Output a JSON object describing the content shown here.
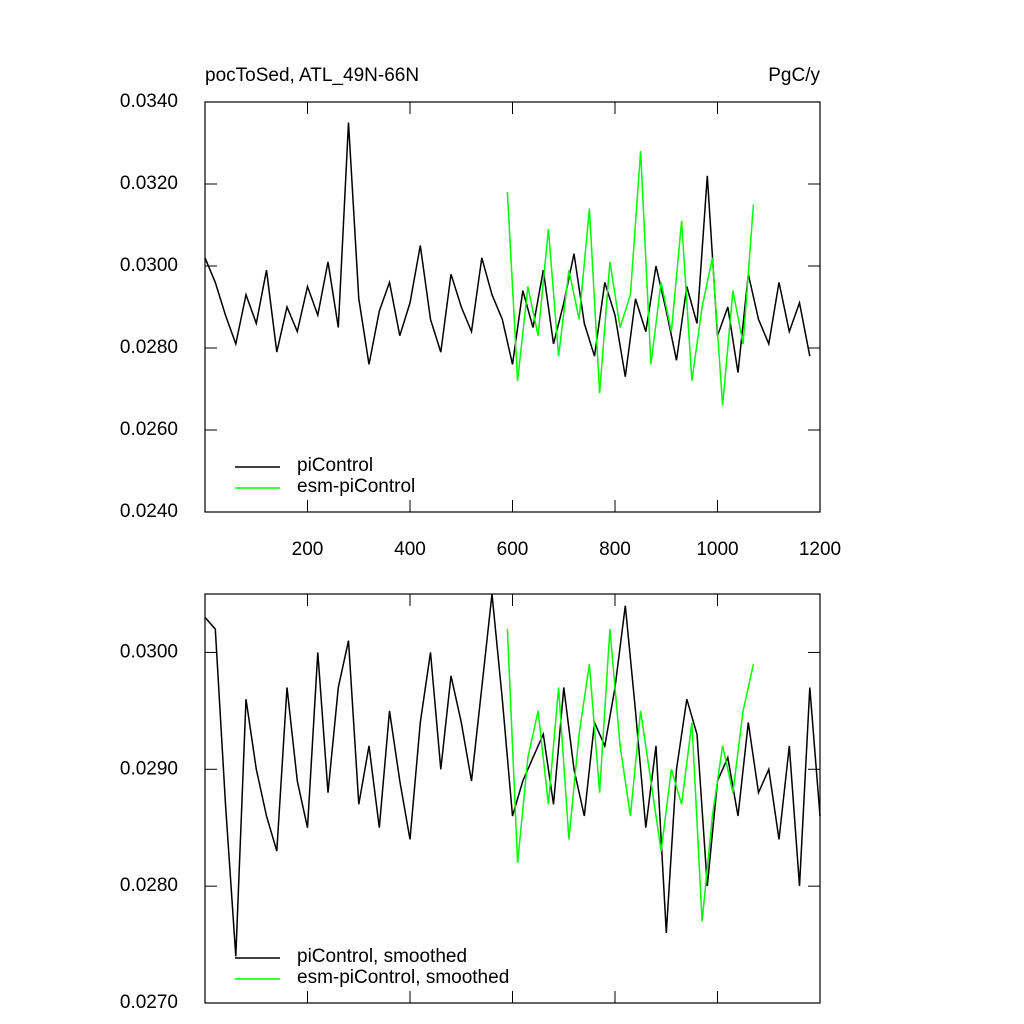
{
  "chart_data": [
    {
      "type": "line",
      "title": "pocToSed, ATL_49N-66N",
      "units": "PgC/y",
      "xlim": [
        0,
        1200
      ],
      "xticks": [
        200,
        400,
        600,
        800,
        1000,
        1200
      ],
      "show_xtick_labels": true,
      "ylim": [
        0.024,
        0.034
      ],
      "yticks": [
        {
          "value": 0.024,
          "label": "0.0240"
        },
        {
          "value": 0.026,
          "label": "0.0260"
        },
        {
          "value": 0.028,
          "label": "0.0280"
        },
        {
          "value": 0.03,
          "label": "0.0300"
        },
        {
          "value": 0.032,
          "label": "0.0320"
        },
        {
          "value": 0.034,
          "label": "0.0340"
        }
      ],
      "series": [
        {
          "name": "piControl",
          "color": "#000000",
          "x": [
            0,
            20,
            40,
            60,
            80,
            100,
            120,
            140,
            160,
            180,
            200,
            220,
            240,
            260,
            280,
            300,
            320,
            340,
            360,
            380,
            400,
            420,
            440,
            460,
            480,
            500,
            520,
            540,
            560,
            580,
            600,
            620,
            640,
            660,
            680,
            700,
            720,
            740,
            760,
            780,
            800,
            820,
            840,
            860,
            880,
            900,
            920,
            940,
            960,
            980,
            1000,
            1020,
            1040,
            1060,
            1080,
            1100,
            1120,
            1140,
            1160,
            1180
          ],
          "values": [
            0.0302,
            0.0296,
            0.0288,
            0.0281,
            0.0293,
            0.0286,
            0.0299,
            0.0279,
            0.029,
            0.0284,
            0.0295,
            0.0288,
            0.0301,
            0.0285,
            0.0335,
            0.0292,
            0.0276,
            0.0289,
            0.0296,
            0.0283,
            0.0291,
            0.0305,
            0.0287,
            0.0279,
            0.0298,
            0.029,
            0.0284,
            0.0302,
            0.0293,
            0.0287,
            0.0276,
            0.0294,
            0.0285,
            0.0299,
            0.0281,
            0.0291,
            0.0303,
            0.0286,
            0.0278,
            0.0296,
            0.0288,
            0.0273,
            0.0292,
            0.0284,
            0.03,
            0.0289,
            0.0277,
            0.0295,
            0.0286,
            0.0322,
            0.0283,
            0.029,
            0.0274,
            0.0298,
            0.0287,
            0.0281,
            0.0296,
            0.0284,
            0.0291,
            0.0278
          ]
        },
        {
          "name": "esm-piControl",
          "color": "#00ff00",
          "x": [
            590,
            610,
            630,
            650,
            670,
            690,
            710,
            730,
            750,
            770,
            790,
            810,
            830,
            850,
            870,
            890,
            910,
            930,
            950,
            970,
            990,
            1010,
            1030,
            1050,
            1070
          ],
          "values": [
            0.0318,
            0.0272,
            0.0295,
            0.0283,
            0.0309,
            0.0278,
            0.0299,
            0.0287,
            0.0314,
            0.0269,
            0.0301,
            0.0285,
            0.0293,
            0.0328,
            0.0276,
            0.0296,
            0.0284,
            0.0311,
            0.0272,
            0.029,
            0.0302,
            0.0266,
            0.0294,
            0.0281,
            0.0315
          ]
        }
      ]
    },
    {
      "type": "line",
      "xlim": [
        0,
        1200
      ],
      "xticks": [
        200,
        400,
        600,
        800,
        1000,
        1200
      ],
      "show_xtick_labels": false,
      "ylim": [
        0.027,
        0.0305
      ],
      "yticks": [
        {
          "value": 0.027,
          "label": "0.0270"
        },
        {
          "value": 0.028,
          "label": "0.0280"
        },
        {
          "value": 0.029,
          "label": "0.0290"
        },
        {
          "value": 0.03,
          "label": "0.0300"
        }
      ],
      "series": [
        {
          "name": "piControl, smoothed",
          "color": "#000000",
          "x": [
            0,
            20,
            40,
            60,
            80,
            100,
            120,
            140,
            160,
            180,
            200,
            220,
            240,
            260,
            280,
            300,
            320,
            340,
            360,
            380,
            400,
            420,
            440,
            460,
            480,
            500,
            520,
            540,
            560,
            580,
            600,
            620,
            640,
            660,
            680,
            700,
            720,
            740,
            760,
            780,
            800,
            820,
            840,
            860,
            880,
            900,
            920,
            940,
            960,
            980,
            1000,
            1020,
            1040,
            1060,
            1080,
            1100,
            1120,
            1140,
            1160,
            1180,
            1200
          ],
          "values": [
            0.0303,
            0.0302,
            0.0287,
            0.0274,
            0.0296,
            0.029,
            0.0286,
            0.0283,
            0.0297,
            0.0289,
            0.0285,
            0.03,
            0.0288,
            0.0297,
            0.0301,
            0.0287,
            0.0292,
            0.0285,
            0.0295,
            0.0289,
            0.0284,
            0.0294,
            0.03,
            0.029,
            0.0298,
            0.0294,
            0.0289,
            0.0297,
            0.0305,
            0.0296,
            0.0286,
            0.0289,
            0.0291,
            0.0293,
            0.0287,
            0.0297,
            0.029,
            0.0286,
            0.0294,
            0.0292,
            0.0297,
            0.0304,
            0.0295,
            0.0285,
            0.0292,
            0.0276,
            0.029,
            0.0296,
            0.0293,
            0.028,
            0.0289,
            0.0291,
            0.0286,
            0.0294,
            0.0288,
            0.029,
            0.0284,
            0.0292,
            0.028,
            0.0297,
            0.0286
          ]
        },
        {
          "name": "esm-piControl, smoothed",
          "color": "#00ff00",
          "x": [
            590,
            610,
            630,
            650,
            670,
            690,
            710,
            730,
            750,
            770,
            790,
            810,
            830,
            850,
            870,
            890,
            910,
            930,
            950,
            970,
            990,
            1010,
            1030,
            1050,
            1070
          ],
          "values": [
            0.0302,
            0.0282,
            0.0291,
            0.0295,
            0.0287,
            0.0297,
            0.0284,
            0.0293,
            0.0299,
            0.0288,
            0.0302,
            0.0292,
            0.0286,
            0.0295,
            0.0289,
            0.0283,
            0.029,
            0.0287,
            0.0294,
            0.0277,
            0.0286,
            0.0292,
            0.0288,
            0.0295,
            0.0299
          ]
        }
      ]
    }
  ]
}
